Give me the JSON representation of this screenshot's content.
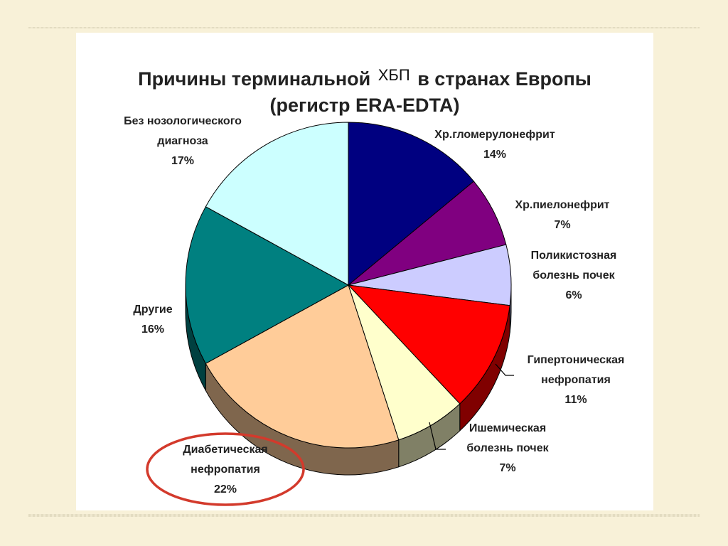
{
  "title": {
    "part1": "Причины терминальной",
    "part_sup": "ХБП",
    "part2": "в странах Европы",
    "line2": "(регистр ERA-EDTA)"
  },
  "chart_data": {
    "type": "pie",
    "title": "Причины терминальной ХБП в странах Европы (регистр ERA-EDTA)",
    "slices": [
      {
        "key": "glomerulonephritis",
        "lines": [
          "Хр.гломерулонефрит"
        ],
        "value_label": "14%",
        "value": 14,
        "color": "#000080",
        "side_color": "#00004d"
      },
      {
        "key": "pyelonephritis",
        "lines": [
          "Хр.пиелонефрит"
        ],
        "value_label": "7%",
        "value": 7,
        "color": "#800080",
        "side_color": "#4d004d"
      },
      {
        "key": "polycystic",
        "lines": [
          "Поликистозная",
          "болезнь почек"
        ],
        "value_label": "6%",
        "value": 6,
        "color": "#ccccff",
        "side_color": "#8f8fb3"
      },
      {
        "key": "hypertensive",
        "lines": [
          "Гипертоническая",
          "нефропатия"
        ],
        "value_label": "11%",
        "value": 11,
        "color": "#ff0000",
        "side_color": "#800000"
      },
      {
        "key": "ischemic",
        "lines": [
          "Ишемическая",
          "болезнь почек"
        ],
        "value_label": "7%",
        "value": 7,
        "color": "#ffffcc",
        "side_color": "#808066"
      },
      {
        "key": "diabetic",
        "lines": [
          "Диабетическая",
          "нефропатия"
        ],
        "value_label": "22%",
        "value": 22,
        "color": "#ffcc99",
        "side_color": "#7f664d"
      },
      {
        "key": "other",
        "lines": [
          "Другие"
        ],
        "value_label": "16%",
        "value": 16,
        "color": "#008080",
        "side_color": "#004040"
      },
      {
        "key": "undiagnosed",
        "lines": [
          "Без нозологического",
          "диагноза"
        ],
        "value_label": "17%",
        "value": 17,
        "color": "#ccffff",
        "side_color": "#8fb3b3"
      }
    ],
    "highlight": {
      "slice": "diabetic",
      "color": "#d33a2c"
    }
  }
}
